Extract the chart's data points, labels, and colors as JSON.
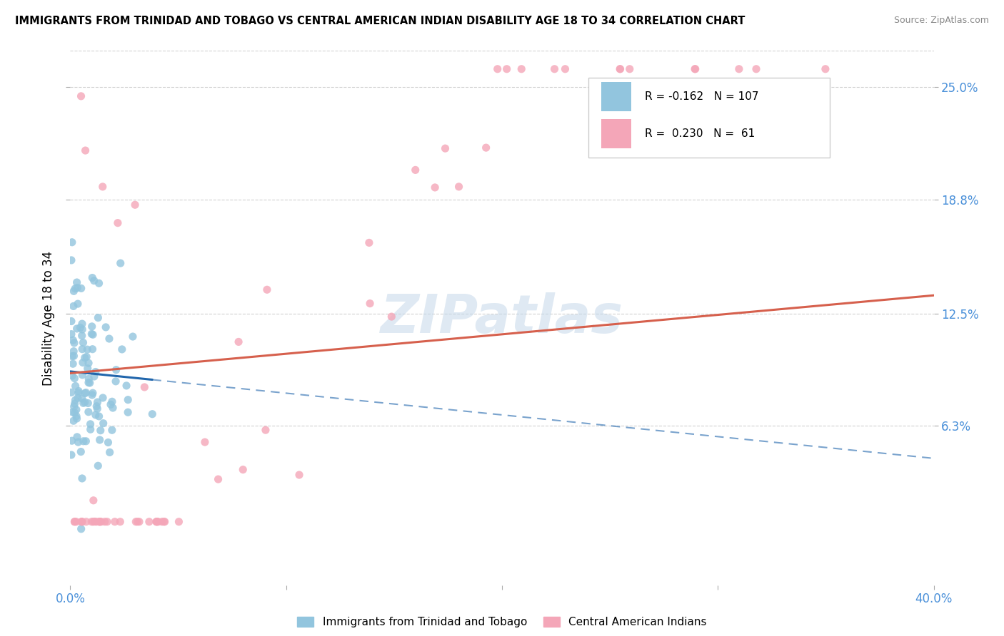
{
  "title": "IMMIGRANTS FROM TRINIDAD AND TOBAGO VS CENTRAL AMERICAN INDIAN DISABILITY AGE 18 TO 34 CORRELATION CHART",
  "source": "Source: ZipAtlas.com",
  "ylabel": "Disability Age 18 to 34",
  "yticks": [
    "25.0%",
    "18.8%",
    "12.5%",
    "6.3%"
  ],
  "ytick_vals": [
    0.25,
    0.188,
    0.125,
    0.063
  ],
  "xlim": [
    0.0,
    0.4
  ],
  "ylim": [
    -0.025,
    0.27
  ],
  "legend_blue_R": "-0.162",
  "legend_blue_N": "107",
  "legend_pink_R": "0.230",
  "legend_pink_N": "61",
  "legend_label_blue": "Immigrants from Trinidad and Tobago",
  "legend_label_pink": "Central American Indians",
  "watermark": "ZIPatlas",
  "blue_color": "#92c5de",
  "pink_color": "#f4a6b8",
  "blue_line_color": "#2166ac",
  "pink_line_color": "#d6604d",
  "blue_line_start_y": 0.093,
  "blue_line_end_y": 0.045,
  "pink_line_start_y": 0.092,
  "pink_line_end_y": 0.135
}
